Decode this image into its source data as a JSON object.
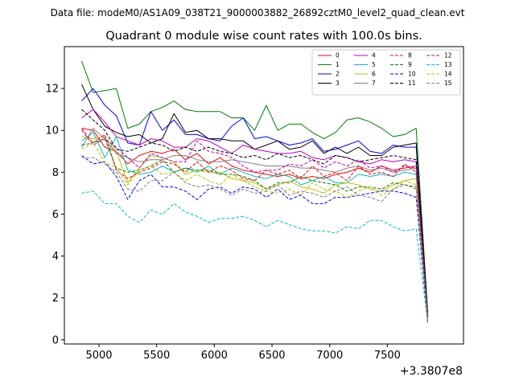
{
  "figure": {
    "suptitle": "Data file: modeM0/AS1A09_038T21_9000003882_26892cztM0_level2_quad_clean.evt"
  },
  "chart_data": {
    "type": "line",
    "title": "Quadrant 0 module wise count rates with 100.0s bins.",
    "xlabel": "",
    "ylabel": "",
    "x_offset_label": "+3.3807e8",
    "x_offset": 338070000,
    "xlim": [
      4700,
      8160
    ],
    "ylim": [
      -0.2,
      14.0
    ],
    "xticks": [
      5000,
      5500,
      6000,
      6500,
      7000,
      7500
    ],
    "xtick_labels": [
      "5000",
      "5500",
      "6000",
      "6500",
      "7000",
      "7500"
    ],
    "yticks": [
      0,
      2,
      4,
      6,
      8,
      10,
      12
    ],
    "ytick_labels": [
      "0",
      "2",
      "4",
      "6",
      "8",
      "10",
      "12"
    ],
    "grid": false,
    "legend": {
      "location": "top-right",
      "ncol": 4
    },
    "x": [
      4850,
      4950,
      5050,
      5150,
      5250,
      5350,
      5450,
      5550,
      5650,
      5750,
      5850,
      5950,
      6050,
      6150,
      6250,
      6350,
      6450,
      6550,
      6650,
      6750,
      6850,
      6950,
      7050,
      7150,
      7250,
      7350,
      7450,
      7550,
      7650,
      7750,
      7850
    ],
    "series": [
      {
        "name": "0",
        "color": "#ff0000",
        "dash": "solid",
        "values": [
          10.1,
          10.0,
          9.2,
          9.0,
          8.4,
          8.8,
          9.0,
          8.9,
          9.1,
          8.6,
          8.9,
          8.4,
          8.7,
          8.3,
          8.1,
          8.0,
          7.9,
          7.8,
          7.9,
          7.7,
          7.8,
          7.7,
          7.9,
          8.0,
          8.2,
          8.0,
          8.3,
          8.1,
          8.2,
          8.3,
          1.0
        ]
      },
      {
        "name": "1",
        "color": "#008000",
        "dash": "solid",
        "values": [
          13.3,
          11.8,
          11.9,
          12.0,
          10.1,
          10.3,
          10.9,
          11.1,
          11.4,
          11.0,
          10.9,
          10.9,
          10.9,
          10.6,
          10.6,
          10.0,
          11.2,
          10.0,
          10.3,
          10.3,
          9.9,
          9.6,
          9.9,
          10.5,
          10.6,
          10.4,
          10.1,
          9.7,
          9.8,
          10.1,
          1.3
        ]
      },
      {
        "name": "2",
        "color": "#0000ff",
        "dash": "solid",
        "values": [
          11.4,
          12.0,
          11.2,
          10.7,
          9.4,
          9.3,
          10.9,
          10.0,
          10.5,
          9.8,
          9.8,
          9.6,
          9.5,
          10.2,
          10.6,
          9.6,
          9.7,
          9.5,
          9.3,
          9.4,
          9.6,
          9.0,
          9.1,
          9.3,
          9.5,
          9.0,
          8.9,
          9.3,
          9.2,
          9.2,
          1.2
        ]
      },
      {
        "name": "3",
        "color": "#000000",
        "dash": "solid",
        "values": [
          12.2,
          11.0,
          10.2,
          9.9,
          9.7,
          9.8,
          9.4,
          9.6,
          10.8,
          9.9,
          10.0,
          9.6,
          9.6,
          9.5,
          9.5,
          9.1,
          9.3,
          9.5,
          9.1,
          9.2,
          9.5,
          8.9,
          9.2,
          8.9,
          9.2,
          8.8,
          8.8,
          9.2,
          9.3,
          9.4,
          1.2
        ]
      },
      {
        "name": "4",
        "color": "#bf00bf",
        "dash": "solid",
        "values": [
          10.6,
          11.0,
          10.4,
          9.7,
          9.5,
          9.3,
          9.6,
          9.5,
          9.2,
          9.2,
          9.6,
          9.5,
          9.2,
          8.9,
          9.3,
          9.1,
          9.0,
          8.9,
          8.9,
          9.0,
          8.7,
          8.6,
          8.8,
          8.7,
          8.5,
          8.4,
          8.6,
          8.5,
          8.6,
          8.5,
          1.1
        ]
      },
      {
        "name": "5",
        "color": "#00bfbf",
        "dash": "solid",
        "values": [
          9.5,
          9.9,
          8.7,
          9.7,
          8.1,
          7.9,
          8.0,
          8.3,
          8.0,
          8.2,
          8.0,
          8.3,
          7.9,
          8.2,
          8.0,
          7.8,
          7.7,
          7.9,
          7.8,
          7.4,
          7.6,
          7.8,
          7.5,
          7.5,
          7.9,
          7.8,
          7.9,
          7.8,
          8.0,
          7.9,
          1.0
        ]
      },
      {
        "name": "6",
        "color": "#bfbf00",
        "dash": "solid",
        "values": [
          9.7,
          9.6,
          9.7,
          9.0,
          7.5,
          8.2,
          8.8,
          8.7,
          8.5,
          7.9,
          8.1,
          8.0,
          8.0,
          7.7,
          7.6,
          7.5,
          7.2,
          7.4,
          7.6,
          7.3,
          7.2,
          7.0,
          7.4,
          7.5,
          7.4,
          7.2,
          7.1,
          7.4,
          7.6,
          7.7,
          0.9
        ]
      },
      {
        "name": "7",
        "color": "#808080",
        "dash": "solid",
        "values": [
          9.2,
          10.1,
          9.6,
          8.9,
          8.7,
          8.5,
          8.6,
          8.6,
          8.8,
          8.8,
          8.6,
          8.5,
          8.5,
          8.6,
          8.5,
          8.4,
          8.3,
          8.3,
          8.3,
          8.2,
          8.2,
          8.1,
          8.0,
          8.2,
          8.3,
          8.1,
          8.2,
          8.0,
          8.1,
          8.2,
          1.0
        ]
      },
      {
        "name": "8",
        "color": "#ff0000",
        "dash": "dashed",
        "values": [
          10.1,
          9.4,
          9.8,
          8.1,
          7.7,
          8.0,
          8.2,
          8.5,
          8.4,
          8.0,
          8.5,
          8.0,
          8.3,
          8.1,
          7.7,
          7.6,
          8.1,
          7.9,
          8.1,
          7.7,
          8.3,
          7.8,
          8.0,
          7.6,
          8.3,
          7.9,
          8.0,
          7.8,
          8.4,
          8.0,
          1.0
        ]
      },
      {
        "name": "9",
        "color": "#008000",
        "dash": "dashed",
        "values": [
          9.3,
          9.4,
          9.6,
          8.2,
          8.0,
          8.1,
          8.3,
          8.6,
          8.0,
          8.2,
          8.1,
          8.1,
          7.9,
          7.9,
          7.8,
          7.6,
          7.2,
          7.5,
          7.5,
          7.8,
          7.6,
          7.5,
          7.4,
          7.1,
          7.3,
          7.3,
          7.2,
          7.5,
          7.4,
          7.3,
          0.9
        ]
      },
      {
        "name": "10",
        "color": "#0000ff",
        "dash": "dashed",
        "values": [
          8.8,
          8.4,
          8.5,
          7.8,
          6.7,
          7.6,
          7.9,
          7.3,
          7.3,
          7.1,
          6.7,
          7.2,
          7.3,
          7.0,
          7.3,
          7.2,
          6.8,
          7.2,
          6.7,
          6.9,
          6.5,
          6.5,
          6.8,
          6.8,
          6.9,
          7.0,
          7.1,
          7.1,
          7.0,
          6.8,
          0.8
        ]
      },
      {
        "name": "11",
        "color": "#000000",
        "dash": "dashed",
        "values": [
          11.0,
          10.5,
          10.0,
          9.1,
          9.0,
          9.2,
          9.4,
          9.3,
          9.0,
          9.2,
          9.0,
          9.2,
          9.0,
          8.9,
          8.7,
          8.8,
          8.6,
          8.9,
          8.7,
          8.8,
          8.6,
          8.4,
          8.8,
          8.7,
          8.5,
          8.6,
          8.7,
          8.8,
          8.7,
          8.6,
          1.1
        ]
      },
      {
        "name": "12",
        "color": "#bf00bf",
        "dash": "dashed",
        "values": [
          10.0,
          9.3,
          9.6,
          9.2,
          8.7,
          8.2,
          8.9,
          8.7,
          8.5,
          8.5,
          9.5,
          9.0,
          8.9,
          8.7,
          8.3,
          8.0,
          8.1,
          8.1,
          8.4,
          8.3,
          8.6,
          8.2,
          8.5,
          8.3,
          8.6,
          8.2,
          8.3,
          8.0,
          8.3,
          8.2,
          1.0
        ]
      },
      {
        "name": "13",
        "color": "#00bfbf",
        "dash": "dashed",
        "values": [
          7.0,
          7.1,
          6.5,
          6.5,
          5.9,
          5.6,
          6.2,
          6.0,
          6.5,
          6.1,
          5.9,
          5.6,
          5.8,
          5.8,
          5.9,
          5.7,
          5.4,
          5.7,
          5.5,
          5.3,
          5.2,
          5.2,
          5.1,
          5.4,
          5.3,
          5.7,
          5.7,
          5.4,
          5.2,
          5.3,
          0.8
        ]
      },
      {
        "name": "14",
        "color": "#bfbf00",
        "dash": "dashed",
        "values": [
          9.1,
          9.4,
          8.5,
          8.2,
          7.4,
          8.1,
          8.3,
          7.9,
          8.0,
          7.6,
          7.9,
          7.6,
          7.4,
          7.9,
          7.6,
          7.3,
          7.1,
          7.0,
          7.2,
          6.9,
          7.5,
          7.2,
          7.1,
          6.8,
          7.1,
          7.3,
          6.9,
          7.2,
          7.6,
          7.4,
          0.9
        ]
      },
      {
        "name": "15",
        "color": "#808080",
        "dash": "dashed",
        "values": [
          8.7,
          8.7,
          8.4,
          8.0,
          7.2,
          7.1,
          7.6,
          7.6,
          8.0,
          7.5,
          7.3,
          7.4,
          7.2,
          6.9,
          7.2,
          7.0,
          7.1,
          7.4,
          6.9,
          7.1,
          7.0,
          6.8,
          7.1,
          7.3,
          6.9,
          6.8,
          6.6,
          7.2,
          7.4,
          7.2,
          0.8
        ]
      }
    ]
  }
}
